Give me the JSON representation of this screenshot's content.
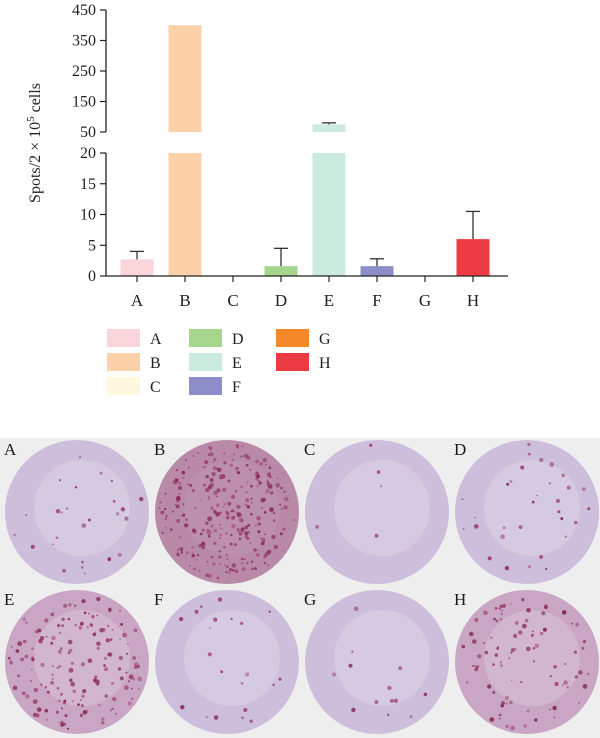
{
  "chart_data": {
    "type": "bar",
    "ylabel": "Spots/2 × 10",
    "ylabel_sup": "5",
    "ylabel_suffix": " cells",
    "axis_break": {
      "lower_range": [
        0,
        20
      ],
      "upper_range": [
        50,
        450
      ]
    },
    "lower_ticks": [
      0,
      5,
      10,
      15,
      20
    ],
    "upper_ticks": [
      50,
      150,
      250,
      350,
      450
    ],
    "categories": [
      "A",
      "B",
      "C",
      "D",
      "E",
      "F",
      "G",
      "H"
    ],
    "values": [
      2.7,
      400,
      0,
      1.6,
      75,
      1.6,
      0,
      6.0
    ],
    "errors": [
      1.3,
      null,
      null,
      2.9,
      5,
      1.2,
      null,
      4.5
    ],
    "colors": [
      "#fbd5dc",
      "#fcd0a8",
      "#fdf8de",
      "#a6d58e",
      "#ccebdf",
      "#8d8dc9",
      "#f5892a",
      "#ec3b42"
    ],
    "legend": [
      "A",
      "B",
      "C",
      "D",
      "E",
      "F",
      "G",
      "H"
    ],
    "legend_placement": "below plot, 3 columns",
    "grid": false
  },
  "photos": {
    "labels": [
      "A",
      "B",
      "C",
      "D",
      "E",
      "F",
      "G",
      "H"
    ],
    "relative_spot_density": [
      0.1,
      1.0,
      0.02,
      0.12,
      0.6,
      0.08,
      0.05,
      0.35
    ]
  }
}
